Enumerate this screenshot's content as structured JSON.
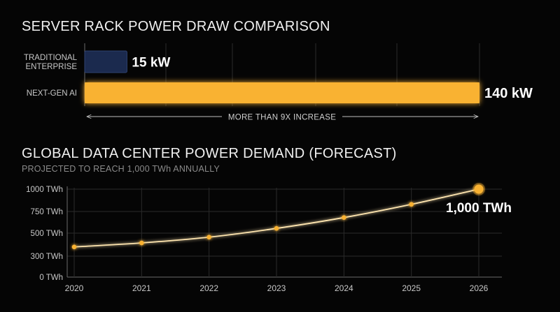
{
  "chart_data": [
    {
      "type": "bar",
      "orientation": "horizontal",
      "title": "SERVER RACK POWER DRAW COMPARISON",
      "categories": [
        "TRADITIONAL ENTERPRISE",
        "NEXT-GEN AI"
      ],
      "category_lines": [
        [
          "TRADITIONAL",
          "ENTERPRISE"
        ],
        [
          "NEXT-GEN AI"
        ]
      ],
      "values": [
        15,
        140
      ],
      "value_labels": [
        "15 kW",
        "140 kW"
      ],
      "xlim": [
        0,
        140
      ],
      "annotation": "MORE THAN 9X INCREASE",
      "colors": [
        "#1b2a4e",
        "#f9b233"
      ],
      "grid": true
    },
    {
      "type": "line",
      "title": "GLOBAL DATA CENTER POWER DEMAND (FORECAST)",
      "subtitle": "PROJECTED TO REACH 1,000 TWh ANNUALLY",
      "x": [
        "2020",
        "2021",
        "2022",
        "2023",
        "2024",
        "2025",
        "2026"
      ],
      "series": [
        {
          "values": [
            380,
            415,
            465,
            555,
            680,
            830,
            1000
          ]
        }
      ],
      "yticks": [
        {
          "value": 0,
          "label": "0 TWh"
        },
        {
          "value": 300,
          "label": "300 TWh"
        },
        {
          "value": 500,
          "label": "500 TWh"
        },
        {
          "value": 750,
          "label": "750 TWh"
        },
        {
          "value": 1000,
          "label": "1000 TWh"
        }
      ],
      "ylim": [
        0,
        1000
      ],
      "end_label": "1,000 TWh",
      "color": "#f9b233",
      "grid": true
    }
  ]
}
